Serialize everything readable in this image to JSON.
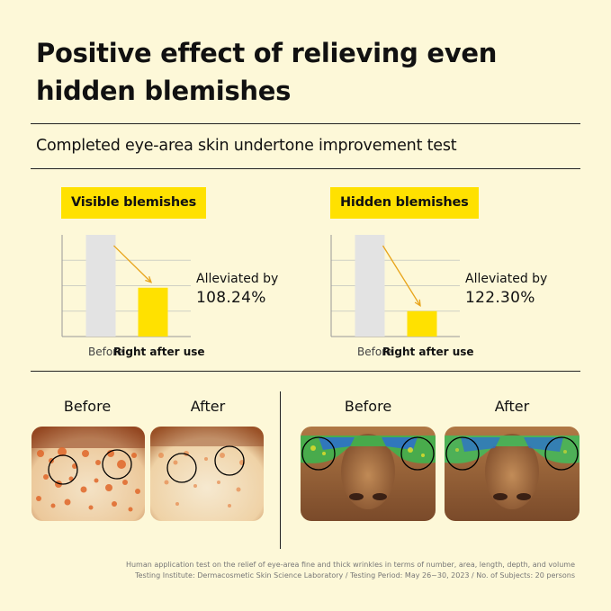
{
  "title_line1": "Positive effect of relieving even",
  "title_line2": "hidden blemishes",
  "subtitle": "Completed eye-area skin undertone improvement test",
  "chart_data": [
    {
      "type": "bar",
      "title": "Visible blemishes",
      "categories": [
        "Before",
        "Right after use"
      ],
      "values": [
        100,
        48
      ],
      "ylim": [
        0,
        100
      ],
      "grid": true,
      "annotation": {
        "label": "Alleviated by",
        "value": "108.24%"
      }
    },
    {
      "type": "bar",
      "title": "Hidden blemishes",
      "categories": [
        "Before",
        "Right after use"
      ],
      "values": [
        100,
        25
      ],
      "ylim": [
        0,
        100
      ],
      "grid": true,
      "annotation": {
        "label": "Alleviated by",
        "value": "122.30%"
      }
    }
  ],
  "colors": {
    "before_bar": "#e3e3e3",
    "after_bar": "#ffe100",
    "arrow": "#e8a41a",
    "tag": "#ffe100"
  },
  "photos": {
    "left": {
      "before": "Before",
      "after": "After",
      "icon": "skin-closeup-photo"
    },
    "right": {
      "before": "Before",
      "after": "After",
      "icon": "thermal-scan-photo"
    }
  },
  "footnote_line1": "Human application test on the relief of eye-area fine and thick wrinkles in terms of number, area, length, depth, and volume",
  "footnote_line2": "Testing Institute: Dermacosmetic Skin Science Laboratory / Testing Period: May 26~30, 2023 / No. of Subjects: 20 persons"
}
